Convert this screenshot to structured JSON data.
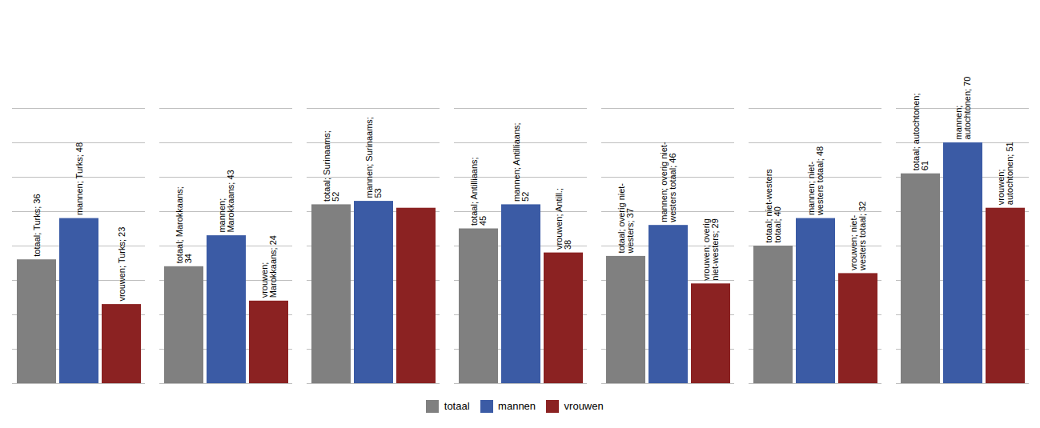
{
  "chart_data": {
    "type": "bar",
    "categories": [
      null,
      null,
      null,
      null,
      null,
      null,
      null
    ],
    "series": [
      {
        "name": "totaal",
        "color": "#808080",
        "values": [
          36,
          34,
          52,
          45,
          37,
          40,
          61
        ],
        "value_labels": [
          "totaal; Turks; 36",
          "totaal; Marokkaans;\n34",
          "totaal; Surinaams;\n52",
          "totaal; Antilliaans;\n45",
          "totaal; overig niet-\nwesters; 37",
          "totaal; niet-westers\ntotaal; 40",
          "totaal; autochtonen;\n61"
        ]
      },
      {
        "name": "mannen",
        "color": "#3B5BA5",
        "values": [
          48,
          43,
          53,
          52,
          46,
          48,
          70
        ],
        "value_labels": [
          "mannen; Turks; 48",
          "mannen;\nMarokkaans; 43",
          "mannen; Surinaams;\n53",
          "mannen; Antilliaans;\n52",
          "mannen; overig niet-\nwesters totaal; 46",
          "mannen; niet-\nwesters totaal; 48",
          "mannen;\nautochtonen; 70"
        ]
      },
      {
        "name": "vrouwen",
        "color": "#8B2222",
        "values": [
          23,
          24,
          51,
          38,
          29,
          32,
          51
        ],
        "value_labels": [
          "vrouwen; Turks; 23",
          "vrouwen;\nMarokkaans; 24",
          null,
          "vrouwen; Antill.;\n38",
          "vrouwen; overig\nniet-westers; 29",
          "vrouwen; niet-\nwesters totaal; 32",
          "vrouwen;\nautochtonen; 51"
        ]
      }
    ],
    "ylim": [
      0,
      80
    ],
    "yticks": [
      0,
      10,
      20,
      30,
      40,
      50,
      60,
      70,
      80
    ],
    "grid": true,
    "legend": "bottom",
    "data_labels": true,
    "tick_labels": false
  }
}
